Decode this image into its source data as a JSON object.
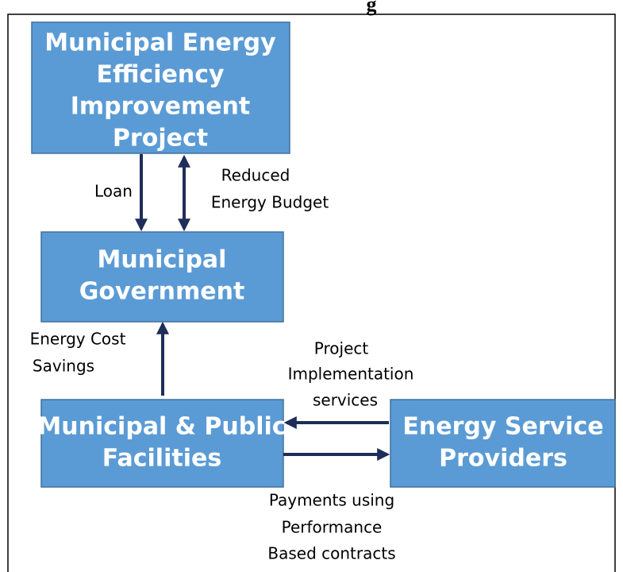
{
  "title": "g",
  "nodes": [
    {
      "label": [
        "Municipal Energy",
        "Efficiency",
        "Improvement",
        "Project"
      ]
    },
    {
      "label": [
        "Municipal",
        "Government"
      ]
    },
    {
      "label": [
        "Municipal & Public",
        "Facilities"
      ]
    },
    {
      "label": [
        "Energy Service",
        "Providers"
      ]
    }
  ],
  "edges": [
    {
      "label": [
        "Loan"
      ]
    },
    {
      "label": [
        "Reduced",
        "Energy Budget"
      ]
    },
    {
      "label": [
        "Energy Cost",
        "Savings"
      ]
    },
    {
      "label": [
        "Project",
        "Implementation",
        "services"
      ]
    },
    {
      "label": [
        "Payments using",
        "Performance",
        "Based contracts"
      ]
    }
  ]
}
